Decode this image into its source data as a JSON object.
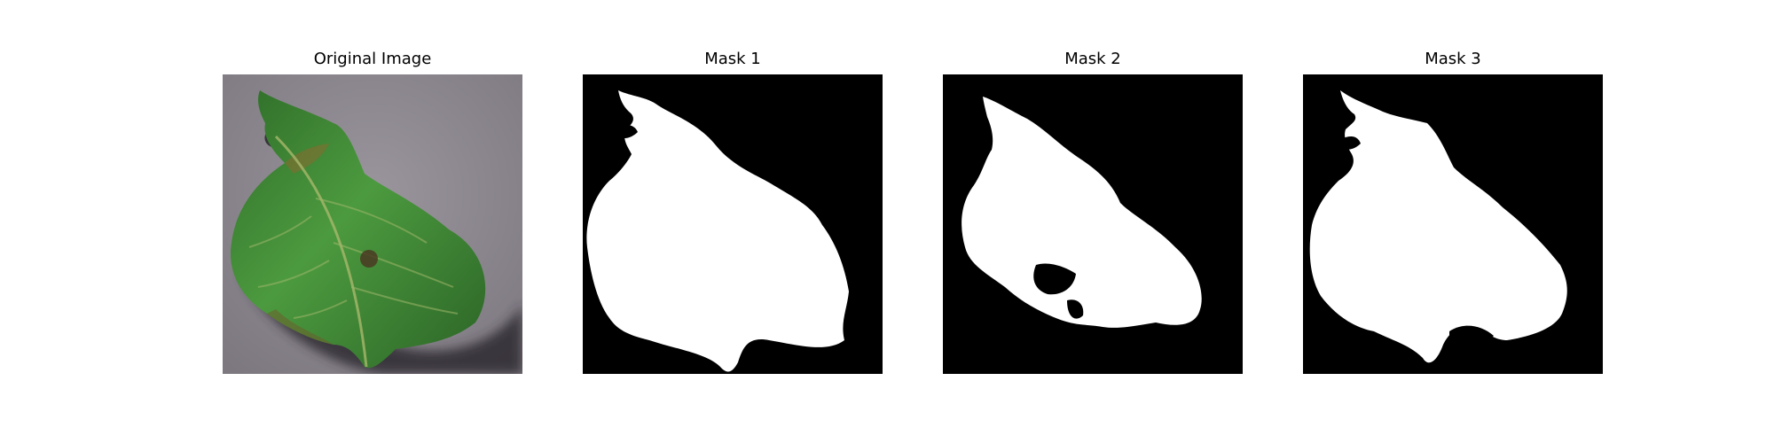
{
  "figure": {
    "panels": [
      {
        "title": "Original Image",
        "kind": "photo",
        "content": "green leaf on gray pavement"
      },
      {
        "title": "Mask 1",
        "kind": "mask"
      },
      {
        "title": "Mask 2",
        "kind": "mask"
      },
      {
        "title": "Mask 3",
        "kind": "mask"
      }
    ]
  },
  "colors": {
    "background": "#ffffff",
    "mask_background": "#000000",
    "mask_foreground": "#ffffff",
    "ground": "#8f8a91",
    "leaf": "#3f8a35"
  }
}
